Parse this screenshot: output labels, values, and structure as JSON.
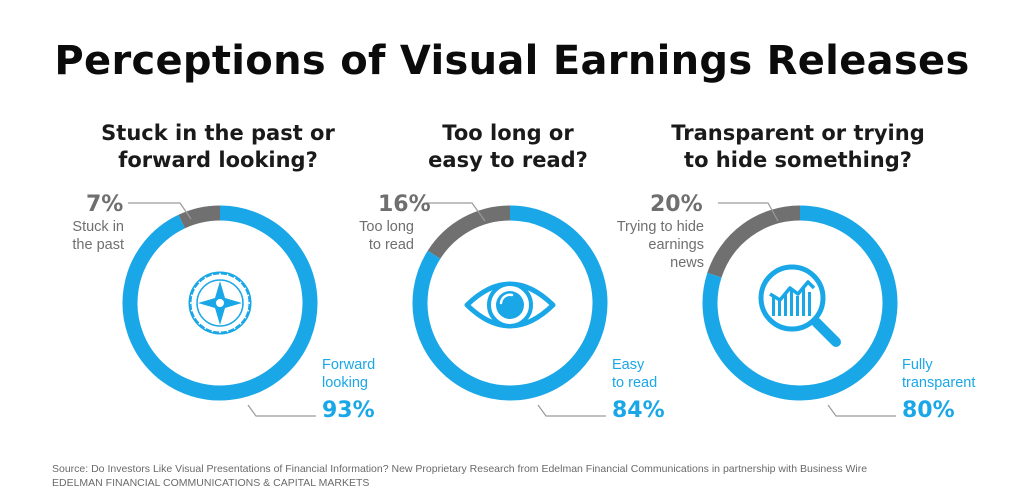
{
  "title": "Perceptions of Visual Earnings Releases",
  "colors": {
    "blue": "#1aa7e8",
    "gray": "#707070",
    "title": "#0b0b0b"
  },
  "chart_data": [
    {
      "type": "pie",
      "question_lines": [
        "Stuck in the past or",
        "forward looking?"
      ],
      "icon": "compass-icon",
      "slices": [
        {
          "pct_label": "7%",
          "value": 7,
          "label_lines": [
            "Stuck in",
            "the past"
          ],
          "color": "#707070"
        },
        {
          "pct_label": "93%",
          "value": 93,
          "label_lines": [
            "Forward",
            "looking"
          ],
          "color": "#1aa7e8"
        }
      ]
    },
    {
      "type": "pie",
      "question_lines": [
        "Too long or",
        "easy to read?"
      ],
      "icon": "eye-icon",
      "slices": [
        {
          "pct_label": "16%",
          "value": 16,
          "label_lines": [
            "Too long",
            "to read"
          ],
          "color": "#707070"
        },
        {
          "pct_label": "84%",
          "value": 84,
          "label_lines": [
            "Easy",
            "to read"
          ],
          "color": "#1aa7e8"
        }
      ]
    },
    {
      "type": "pie",
      "question_lines": [
        "Transparent or trying",
        "to hide something?"
      ],
      "icon": "magnifier-chart-icon",
      "slices": [
        {
          "pct_label": "20%",
          "value": 20,
          "label_lines": [
            "Trying to hide",
            "earnings",
            "news"
          ],
          "color": "#707070"
        },
        {
          "pct_label": "80%",
          "value": 80,
          "label_lines": [
            "Fully",
            "transparent"
          ],
          "color": "#1aa7e8"
        }
      ]
    }
  ],
  "footer": {
    "source": "Source: Do Investors Like Visual Presentations of Financial Information? New Proprietary Research from Edelman Financial Communications in partnership with Business Wire",
    "org": "EDELMAN FINANCIAL COMMUNICATIONS & CAPITAL MARKETS"
  }
}
